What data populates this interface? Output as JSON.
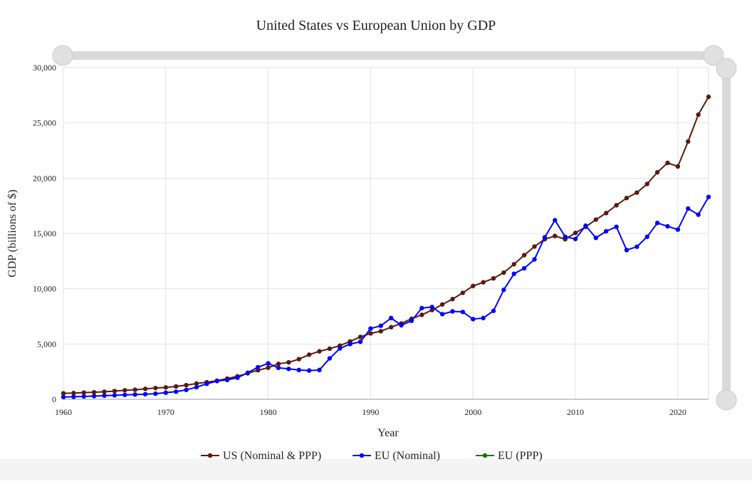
{
  "chart_data": {
    "type": "line",
    "title": "United States vs European Union by GDP",
    "x_label": "Year",
    "y_label": "GDP (billions of $)",
    "x": [
      1960,
      1961,
      1962,
      1963,
      1964,
      1965,
      1966,
      1967,
      1968,
      1969,
      1970,
      1971,
      1972,
      1973,
      1974,
      1975,
      1976,
      1977,
      1978,
      1979,
      1980,
      1981,
      1982,
      1983,
      1984,
      1985,
      1986,
      1987,
      1988,
      1989,
      1990,
      1991,
      1992,
      1993,
      1994,
      1995,
      1996,
      1997,
      1998,
      1999,
      2000,
      2001,
      2002,
      2003,
      2004,
      2005,
      2006,
      2007,
      2008,
      2009,
      2010,
      2011,
      2012,
      2013,
      2014,
      2015,
      2016,
      2017,
      2018,
      2019,
      2020,
      2021,
      2022,
      2023
    ],
    "series": [
      {
        "name": "US (Nominal & PPP)",
        "color": "#5a1a0c",
        "values": [
          543,
          563,
          605,
          638,
          686,
          744,
          815,
          862,
          943,
          1019,
          1073,
          1165,
          1280,
          1425,
          1545,
          1684,
          1873,
          2082,
          2352,
          2627,
          2857,
          3207,
          3343,
          3634,
          4037,
          4339,
          4580,
          4855,
          5236,
          5642,
          5963,
          6158,
          6520,
          6859,
          7287,
          7639,
          8073,
          8577,
          9062,
          9631,
          10251,
          10582,
          10936,
          11458,
          12214,
          13037,
          13815,
          14475,
          14770,
          14478,
          15049,
          15600,
          16254,
          16843,
          17551,
          18206,
          18695,
          19477,
          20533,
          21381,
          21060,
          23315,
          25744,
          27361
        ]
      },
      {
        "name": "EU (Nominal)",
        "color": "#0000ff",
        "values": [
          200,
          230,
          260,
          290,
          330,
          360,
          400,
          430,
          460,
          510,
          600,
          690,
          850,
          1100,
          1400,
          1650,
          1750,
          1950,
          2400,
          2900,
          3250,
          2850,
          2750,
          2650,
          2600,
          2650,
          3700,
          4600,
          5000,
          5200,
          6400,
          6650,
          7350,
          6700,
          7100,
          8250,
          8350,
          7700,
          7950,
          7900,
          7250,
          7350,
          8000,
          9900,
          11350,
          11850,
          12650,
          14650,
          16200,
          14700,
          14500,
          15700,
          14600,
          15200,
          15600,
          13500,
          13800,
          14700,
          15950,
          15650,
          15350,
          17250,
          16700,
          18300
        ]
      },
      {
        "name": "EU (PPP)",
        "color": "#0a7a0a",
        "values": [
          null,
          null,
          null,
          null,
          null,
          null,
          null,
          null,
          null,
          null,
          null,
          null,
          null,
          null,
          null,
          null,
          null,
          null,
          null,
          null,
          null,
          null,
          null,
          null,
          null,
          null,
          null,
          null,
          null,
          null,
          null,
          null,
          null,
          null,
          null,
          null,
          null,
          null,
          null,
          null,
          null,
          null,
          null,
          null,
          null,
          null,
          null,
          null,
          null,
          null,
          null,
          null,
          null,
          null,
          null,
          null,
          null,
          null,
          null,
          null,
          null,
          null,
          null,
          null
        ]
      }
    ],
    "xlim": [
      1960,
      2023
    ],
    "xticks": [
      1960,
      1970,
      1980,
      1990,
      2000,
      2010,
      2020
    ],
    "ylim": [
      0,
      30000
    ],
    "yticks": [
      0,
      {
        "value": 5000,
        "label": "5,000"
      },
      {
        "value": 10000,
        "label": "10,000"
      },
      {
        "value": 15000,
        "label": "15,000"
      },
      {
        "value": 20000,
        "label": "20,000"
      },
      {
        "value": 25000,
        "label": "25,000"
      },
      {
        "value": 30000,
        "label": "30,000"
      }
    ],
    "grid": true,
    "legend": "bottom"
  }
}
